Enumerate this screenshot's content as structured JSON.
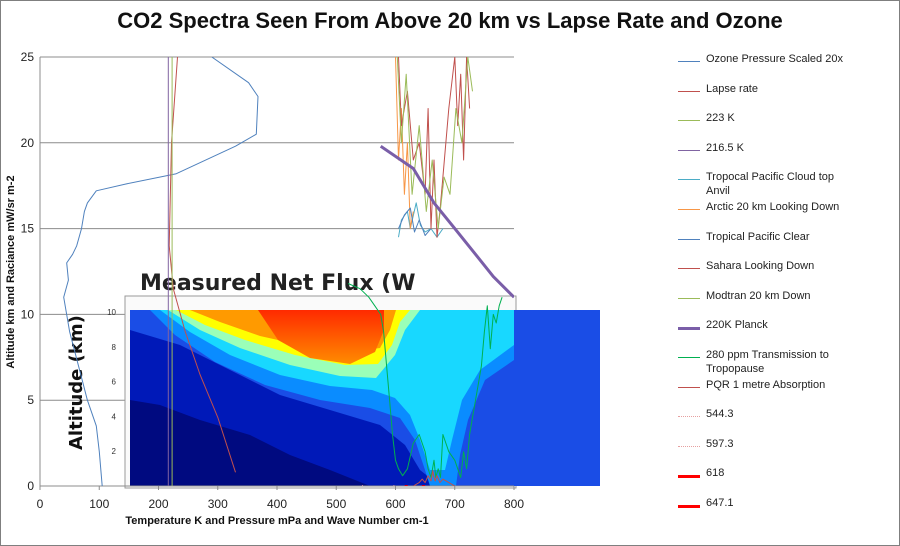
{
  "chart_data": {
    "type": "line",
    "title": "CO2 Spectra Seen From Above 20 km vs Lapse Rate and Ozone",
    "xlabel": "Temperature K and Pressure mPa and Wave Number cm-1",
    "ylabel": "Altitude km and Raciance mW/sr m-2",
    "xlim": [
      0,
      800
    ],
    "ylim": [
      0,
      25
    ],
    "x_ticks": [
      0,
      100,
      200,
      300,
      400,
      500,
      600,
      700,
      800
    ],
    "y_ticks": [
      0,
      5,
      10,
      15,
      20,
      25
    ],
    "grid": "horizontal",
    "legend_position": "right",
    "inset": {
      "title": "Measured Net Flux (W",
      "ylabel": "Altitude (km)",
      "y_ticks": [
        2,
        4,
        6,
        8,
        10
      ]
    },
    "series": [
      {
        "name": "Ozone Pressure Scaled 20x",
        "color": "#4f81bd",
        "width": 1,
        "x": [
          105,
          100,
          95,
          80,
          65,
          50,
          40,
          48,
          45,
          55,
          62,
          70,
          75,
          80,
          95,
          145,
          230,
          330,
          365,
          368,
          352,
          290
        ],
        "y": [
          0,
          2,
          3.5,
          5,
          7,
          9,
          11,
          12,
          13,
          13.5,
          14,
          15,
          16,
          16.5,
          17.2,
          17.6,
          18.2,
          19.8,
          20.5,
          22.7,
          23.5,
          25
        ]
      },
      {
        "name": "Lapse rate",
        "color": "#c0504d",
        "width": 1,
        "x": [
          330,
          300,
          270,
          245,
          225,
          218,
          222,
          232
        ],
        "y": [
          0.8,
          4,
          6.5,
          9,
          11.5,
          14,
          20,
          25
        ]
      },
      {
        "name": "223 K",
        "color": "#9bbb59",
        "width": 1,
        "x": [
          223,
          223
        ],
        "y": [
          0,
          25
        ]
      },
      {
        "name": "216.5 K",
        "color": "#8064a2",
        "width": 1,
        "x": [
          216.5,
          216.5
        ],
        "y": [
          0,
          25
        ]
      },
      {
        "name": "Tropocal Pacific Cloud top Anvil",
        "color": "#4bacc6",
        "width": 1,
        "x": [
          605,
          610,
          620,
          625,
          635,
          642,
          650,
          660,
          670,
          680
        ],
        "y": [
          14.5,
          15.5,
          16,
          15,
          16.5,
          15.2,
          14.8,
          15,
          14.5,
          15
        ]
      },
      {
        "name": "Arctic 20 km Looking Down",
        "color": "#f79646",
        "width": 1,
        "x": [
          600,
          605,
          610,
          615,
          620,
          625,
          630
        ],
        "y": [
          25,
          19,
          22,
          17,
          20,
          15,
          16
        ]
      },
      {
        "name": "Tropical Pacific Clear",
        "color": "#4f81bd",
        "width": 1,
        "x": [
          605,
          615,
          625,
          632,
          640,
          650,
          660
        ],
        "y": [
          15,
          15.8,
          16.2,
          14.8,
          15.5,
          14.6,
          15
        ]
      },
      {
        "name": "Sahara Looking Down",
        "color": "#c0504d",
        "width": 1,
        "x": [
          605,
          610,
          620,
          630,
          640,
          650,
          655,
          660,
          665,
          670,
          675,
          680,
          690,
          700,
          705,
          710,
          715,
          720,
          725
        ],
        "y": [
          25,
          21,
          23,
          19,
          20,
          17,
          22,
          15,
          19,
          14.5,
          16,
          18,
          22,
          25,
          21,
          24,
          19,
          25,
          22
        ]
      },
      {
        "name": "Modtran 20 km Down",
        "color": "#9bbb59",
        "width": 1,
        "x": [
          603,
          610,
          618,
          628,
          640,
          652,
          662,
          672,
          682,
          692,
          702,
          712,
          722,
          730
        ],
        "y": [
          25,
          20,
          24,
          17,
          21,
          16,
          19,
          15,
          18,
          17,
          22,
          20,
          25,
          23
        ]
      },
      {
        "name": "220K Planck",
        "color": "#7a5ea8",
        "width": 3,
        "x": [
          575,
          630,
          665,
          700,
          735,
          765,
          800
        ],
        "y": [
          19.8,
          18.5,
          16.5,
          15,
          13.5,
          12.2,
          11
        ]
      },
      {
        "name": "280 ppm Transmission to Tropopause",
        "color": "#00b050",
        "width": 1,
        "x": [
          520,
          540,
          555,
          565,
          575,
          580,
          585,
          590,
          595,
          600,
          605,
          612,
          620,
          630,
          640,
          650,
          655,
          660,
          665,
          668,
          672,
          676,
          680,
          690,
          700,
          710,
          715,
          720,
          725,
          730,
          735,
          740,
          745,
          750,
          755,
          760,
          765,
          770,
          775,
          780
        ],
        "y": [
          11.8,
          11.5,
          11,
          10.5,
          10,
          9,
          7,
          5,
          3,
          1.5,
          1,
          0.6,
          1,
          2.5,
          3,
          2,
          1,
          0.5,
          1.5,
          0.5,
          1,
          0.5,
          3,
          2,
          1.5,
          0.5,
          2,
          1,
          3,
          4,
          5,
          6,
          7,
          9,
          10.5,
          8,
          10,
          9.5,
          10.5,
          11
        ]
      },
      {
        "name": "PQR 1 metre Absorption",
        "color": "#c0504d",
        "width": 1,
        "x": [
          630,
          640,
          645,
          650,
          655,
          660,
          663,
          665,
          667,
          670,
          675,
          680,
          690,
          700
        ],
        "y": [
          0,
          0.2,
          0.4,
          0.2,
          0.6,
          0.3,
          0.9,
          0.5,
          0.3,
          0.6,
          0.2,
          0.4,
          0.2,
          0
        ]
      },
      {
        "name": "544.3",
        "color": "#e6a0a0",
        "width": 1,
        "dash": "2,2",
        "x": [
          544.3,
          544.3
        ],
        "y": [
          0,
          0.05
        ]
      },
      {
        "name": "597.3",
        "color": "#e6a0a0",
        "width": 1,
        "dash": "2,2",
        "x": [
          597.3,
          597.3
        ],
        "y": [
          0,
          0.05
        ]
      },
      {
        "name": "618",
        "color": "#ff0000",
        "width": 3,
        "x": [
          618,
          618
        ],
        "y": [
          0,
          0.05
        ]
      },
      {
        "name": "647.1",
        "color": "#ff0000",
        "width": 3,
        "x": [
          647.1,
          647.1
        ],
        "y": [
          0,
          0.05
        ]
      }
    ]
  }
}
